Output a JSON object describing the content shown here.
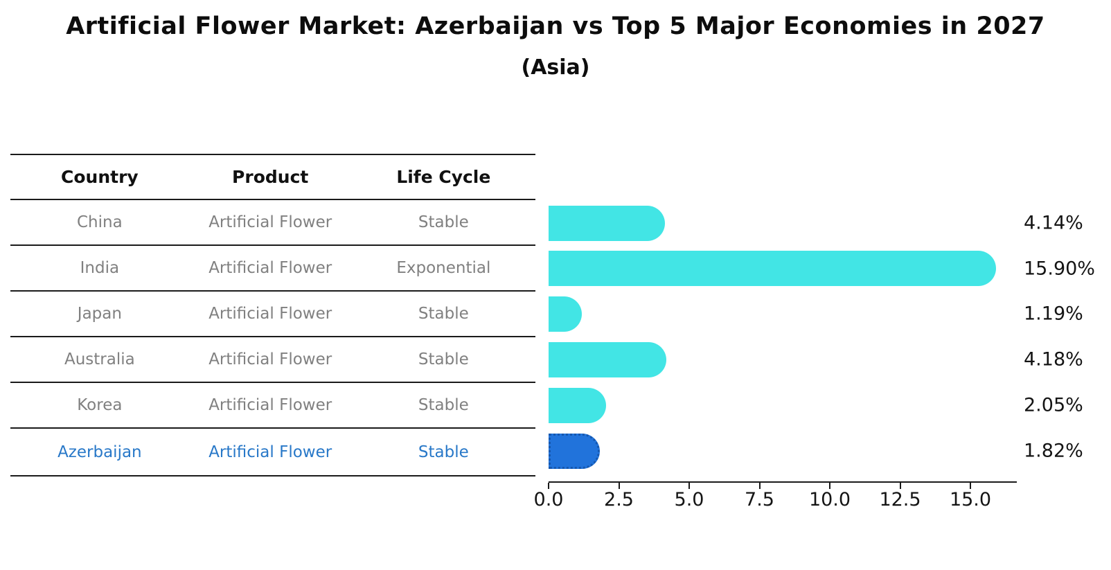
{
  "title": "Artificial Flower Market: Azerbaijan vs Top 5 Major Economies in 2027",
  "subtitle": "(Asia)",
  "table": {
    "headers": [
      "Country",
      "Product",
      "Life Cycle"
    ]
  },
  "chart_data": {
    "type": "bar",
    "orientation": "horizontal",
    "categories": [
      "China",
      "India",
      "Japan",
      "Australia",
      "Korea",
      "Azerbaijan"
    ],
    "values": [
      4.14,
      15.9,
      1.19,
      4.18,
      2.05,
      1.82
    ],
    "rows": [
      {
        "country": "China",
        "product": "Artificial Flower",
        "life_cycle": "Stable",
        "value": 4.14,
        "value_label": "4.14%",
        "highlight": false
      },
      {
        "country": "India",
        "product": "Artificial Flower",
        "life_cycle": "Exponential",
        "value": 15.9,
        "value_label": "15.90%",
        "highlight": false
      },
      {
        "country": "Japan",
        "product": "Artificial Flower",
        "life_cycle": "Stable",
        "value": 1.19,
        "value_label": "1.19%",
        "highlight": false
      },
      {
        "country": "Australia",
        "product": "Artificial Flower",
        "life_cycle": "Stable",
        "value": 4.18,
        "value_label": "4.18%",
        "highlight": false
      },
      {
        "country": "Korea",
        "product": "Artificial Flower",
        "life_cycle": "Stable",
        "value": 2.05,
        "value_label": "2.05%",
        "highlight": false
      },
      {
        "country": "Azerbaijan",
        "product": "Artificial Flower",
        "life_cycle": "Stable",
        "value": 1.82,
        "value_label": "1.82%",
        "highlight": true
      }
    ],
    "x_tick_labels": [
      "0.0",
      "2.5",
      "5.0",
      "7.5",
      "10.0",
      "12.5",
      "15.0"
    ],
    "xlim": [
      0,
      16.65
    ],
    "grid": false,
    "legend": false,
    "colors": {
      "bar": "#42e5e5",
      "highlight_bar": "#2173db",
      "highlight_bar_border": "#1557ae",
      "highlight_text": "#2878c8",
      "row_text": "#808080",
      "axis_text": "#141414",
      "line": "#1a1a1a"
    }
  }
}
